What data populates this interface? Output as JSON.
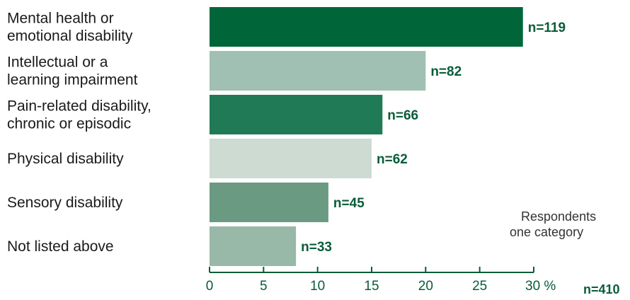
{
  "chart_data": {
    "type": "bar",
    "orientation": "horizontal",
    "categories": [
      [
        "Mental health or",
        "emotional disability"
      ],
      [
        "Intellectual or a",
        "learning impairment"
      ],
      [
        "Pain-related disability,",
        "chronic or episodic"
      ],
      [
        "Physical disability"
      ],
      [
        "Sensory disability"
      ],
      [
        "Not listed above"
      ]
    ],
    "values": [
      29,
      20,
      16,
      15,
      11,
      8
    ],
    "data_labels": [
      "n=119",
      "n=82",
      "n=66",
      "n=62",
      "n=45",
      "n=33"
    ],
    "bar_colors": [
      "#00663a",
      "#9fc0b2",
      "#207a56",
      "#cddbd3",
      "#6a9b82",
      "#98b8a8"
    ],
    "xlim": [
      0,
      30
    ],
    "xticks": [
      0,
      5,
      10,
      15,
      20,
      25,
      30
    ],
    "xtick_labels": [
      "0",
      "5",
      "10",
      "15",
      "20",
      "25",
      "30 %"
    ],
    "grid": false,
    "title": "",
    "xlabel": "",
    "ylabel": ""
  },
  "note": [
    "Respondents",
    "one category"
  ],
  "total": "n=410",
  "colors": {
    "axis": "#0a5c3a",
    "text": "#1a1a1a"
  }
}
